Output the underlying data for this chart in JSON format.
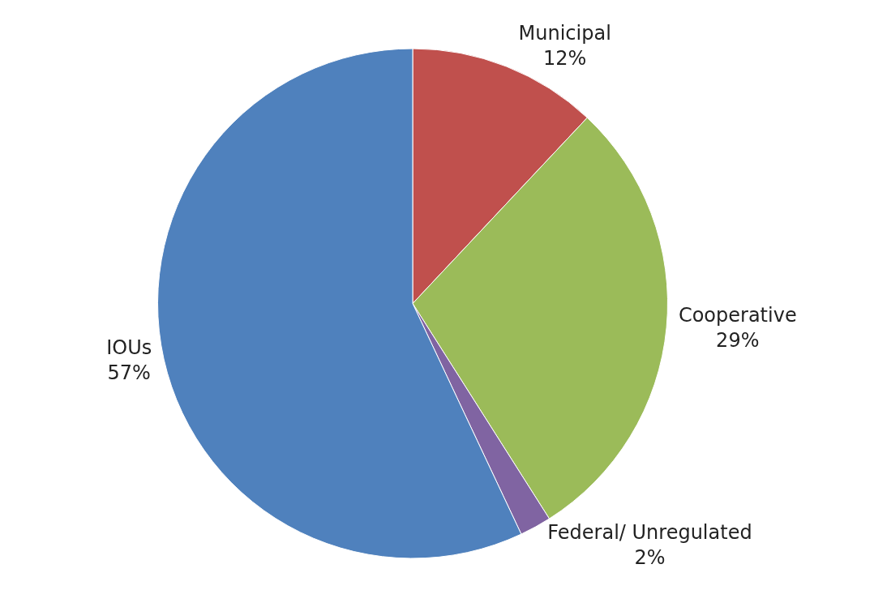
{
  "chart_data": {
    "type": "pie",
    "categories": [
      "Municipal",
      "Cooperative",
      "Federal/ Unregulated",
      "IOUs"
    ],
    "values": [
      12,
      29,
      2,
      57
    ],
    "value_labels": [
      "12%",
      "29%",
      "2%",
      "57%"
    ],
    "colors": [
      "#c0504d",
      "#9bbb59",
      "#8064a2",
      "#4f81bd"
    ],
    "legend": false
  }
}
